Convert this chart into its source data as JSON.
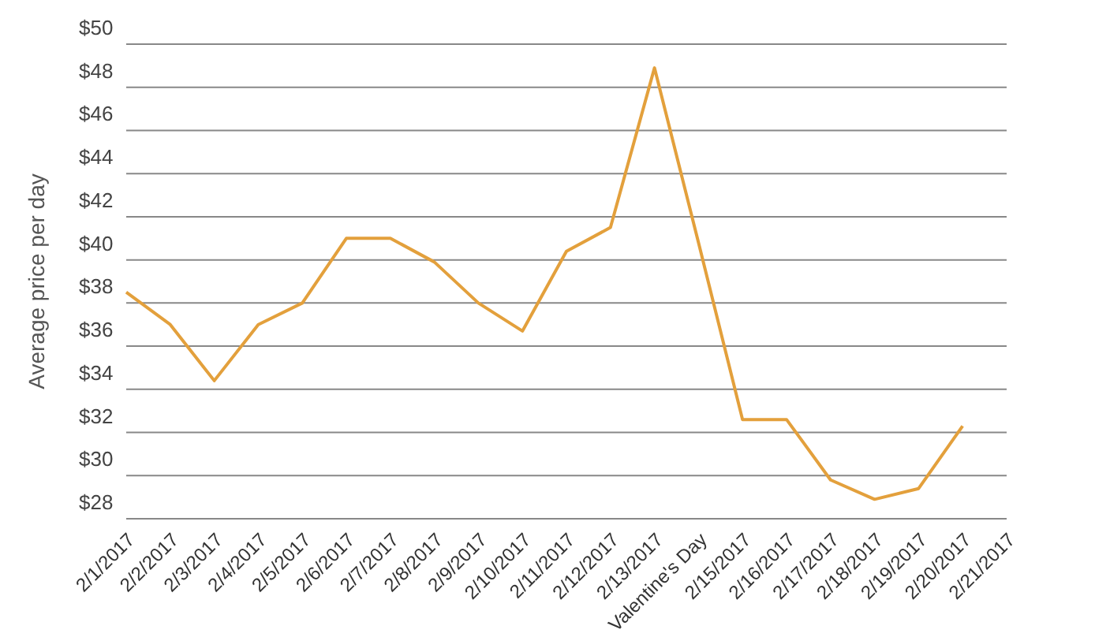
{
  "chart_data": {
    "type": "line",
    "ylabel": "Average price per day",
    "categories": [
      "2/1/2017",
      "2/2/2017",
      "2/3/2017",
      "2/4/2017",
      "2/5/2017",
      "2/6/2017",
      "2/7/2017",
      "2/8/2017",
      "2/9/2017",
      "2/10/2017",
      "2/11/2017",
      "2/12/2017",
      "2/13/2017",
      "Valentine's Day",
      "2/15/2017",
      "2/16/2017",
      "2/17/2017",
      "2/18/2017",
      "2/19/2017",
      "2/20/2017",
      "2/21/2017"
    ],
    "series": [
      {
        "color": "#e3a03c",
        "values": [
          38.5,
          37.0,
          34.4,
          37.0,
          38.0,
          41.0,
          41.0,
          39.9,
          38.0,
          36.7,
          40.4,
          41.5,
          48.9,
          40.8,
          32.6,
          32.6,
          29.8,
          28.9,
          29.4,
          32.3,
          null
        ]
      }
    ],
    "ylim": [
      28,
      50
    ],
    "yticks": [
      {
        "value": 28,
        "label": "$28"
      },
      {
        "value": 30,
        "label": "$30"
      },
      {
        "value": 32,
        "label": "$32"
      },
      {
        "value": 34,
        "label": "$34"
      },
      {
        "value": 36,
        "label": "$36"
      },
      {
        "value": 38,
        "label": "$38"
      },
      {
        "value": 40,
        "label": "$40"
      },
      {
        "value": 42,
        "label": "$42"
      },
      {
        "value": 44,
        "label": "$44"
      },
      {
        "value": 46,
        "label": "$46"
      },
      {
        "value": 48,
        "label": "$48"
      },
      {
        "value": 50,
        "label": "$50"
      }
    ],
    "grid": "y",
    "marker": "none",
    "line_style": "solid",
    "legend": false
  }
}
